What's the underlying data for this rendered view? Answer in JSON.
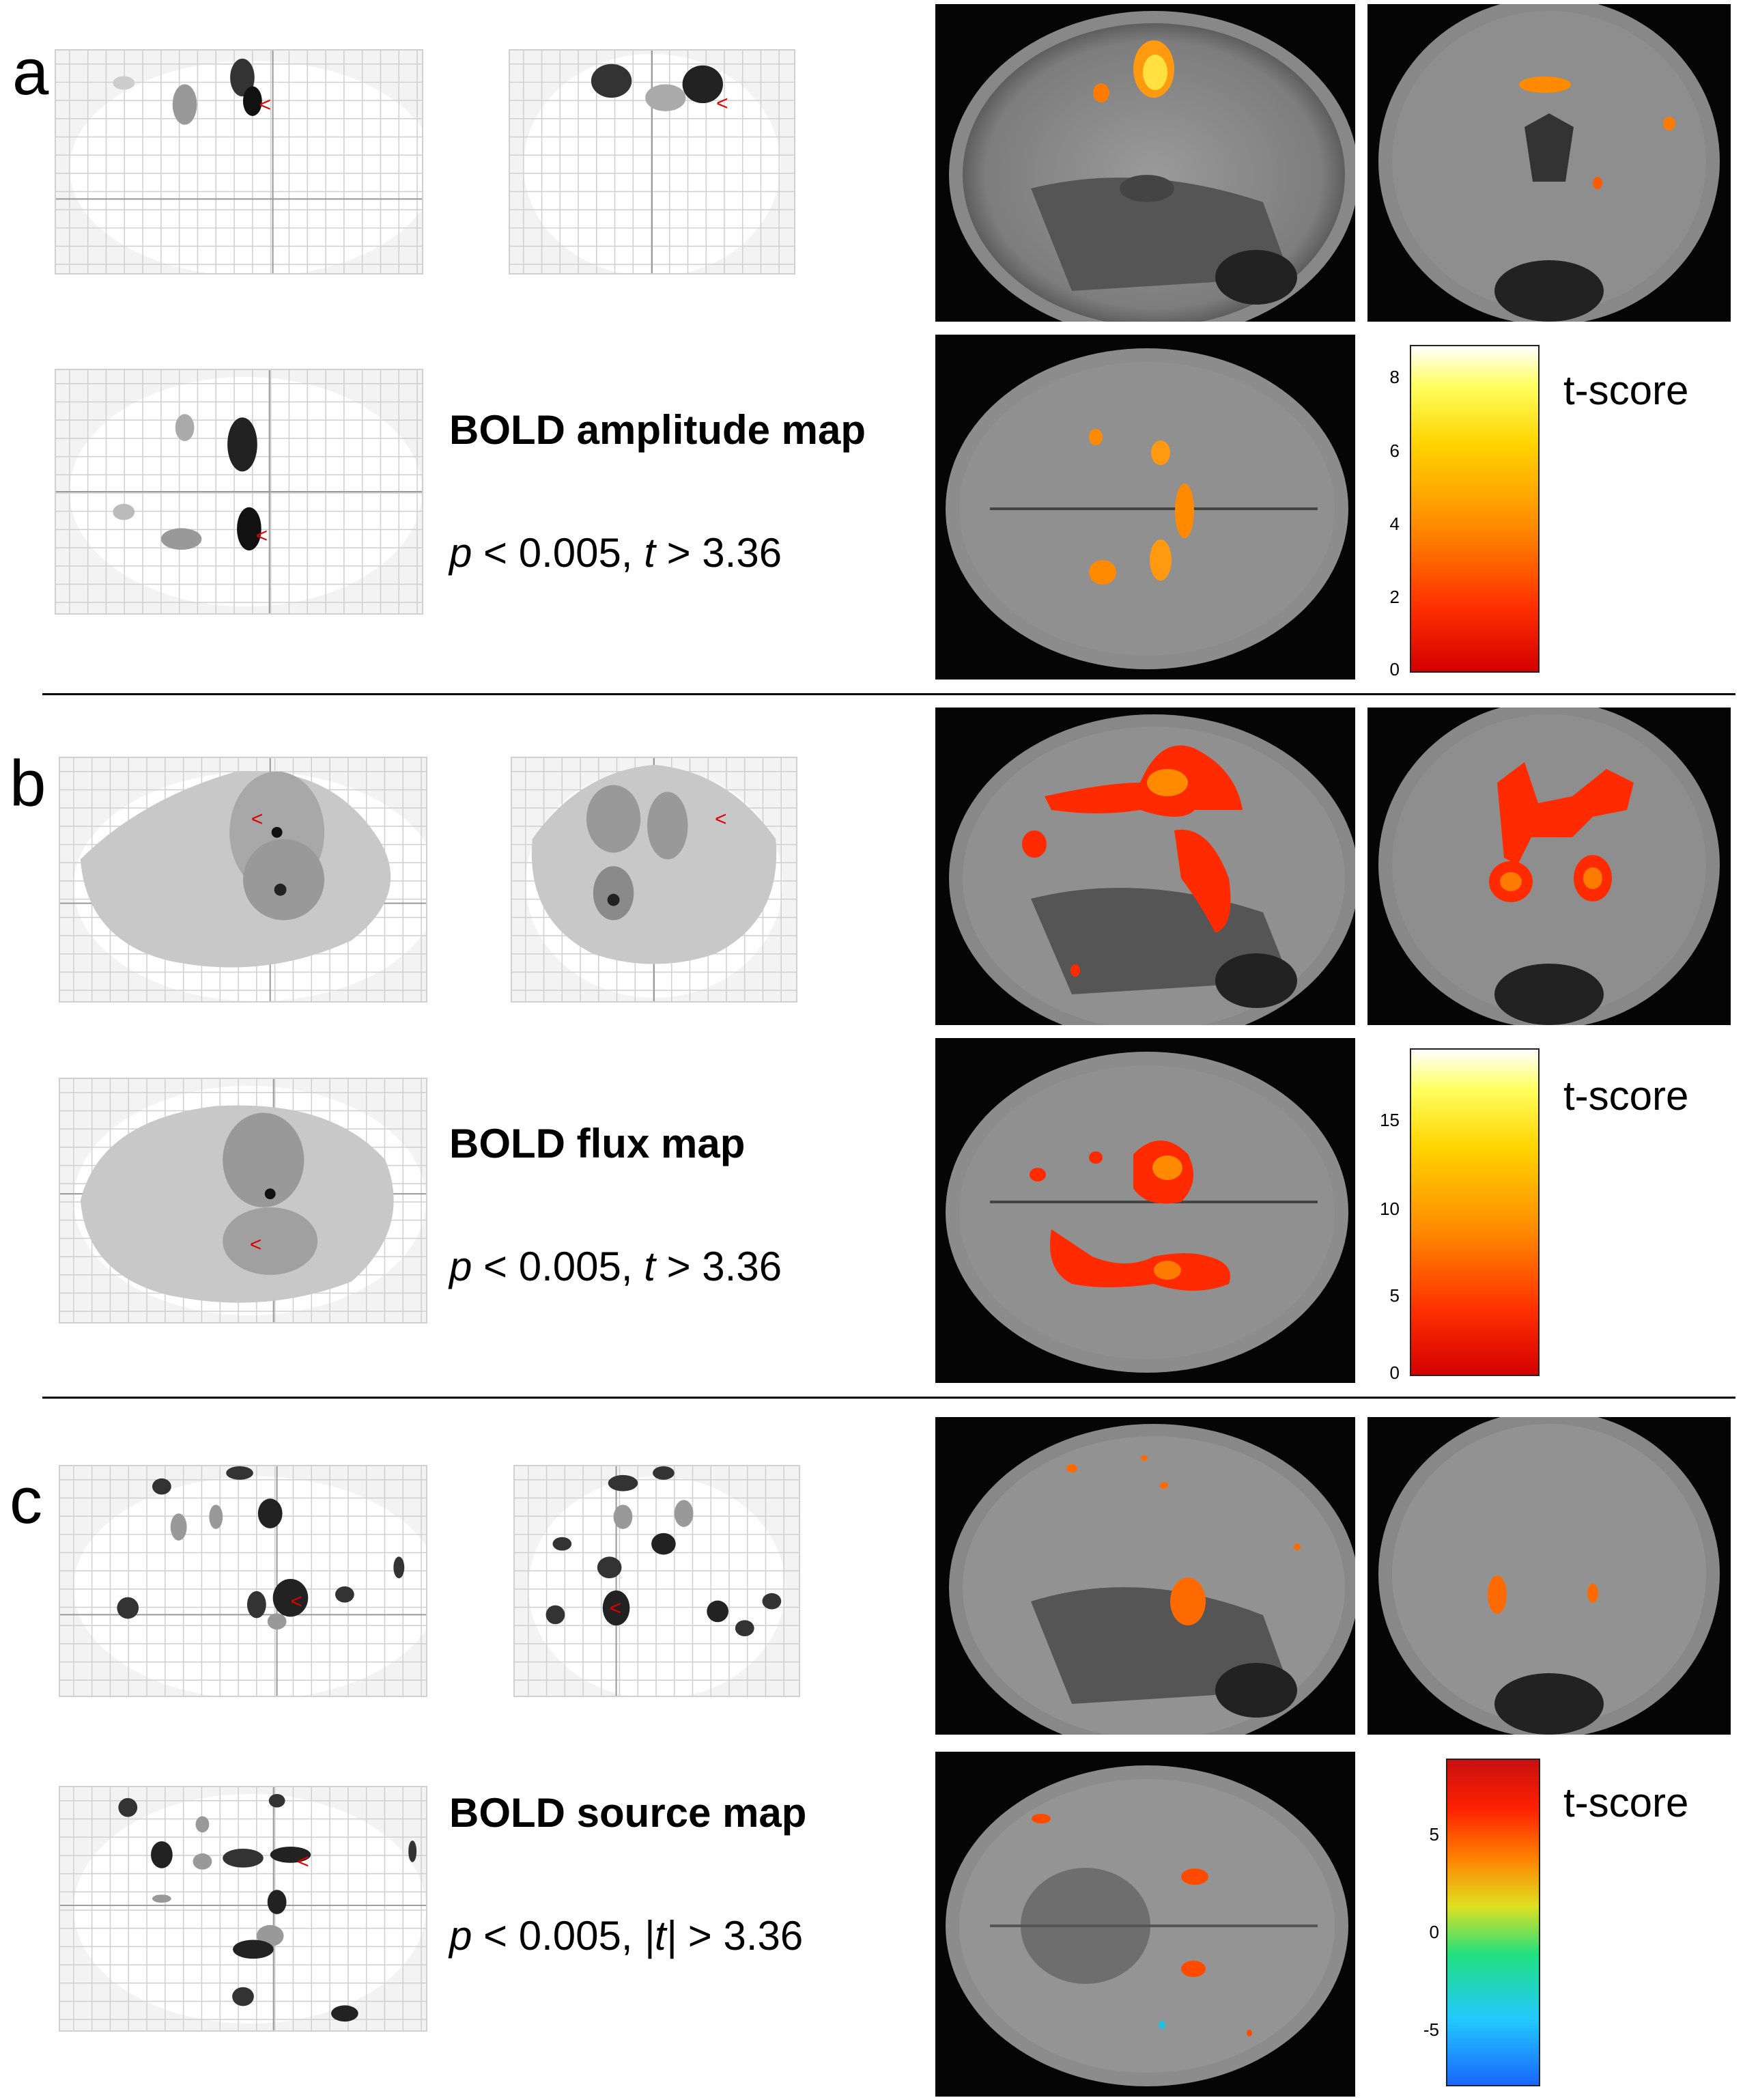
{
  "panels": [
    {
      "letter": "a",
      "title": "BOLD amplitude map",
      "threshold": {
        "p": "p",
        "p_text": " < 0.005, ",
        "t": "t",
        "t_text": " > 3.36"
      },
      "colorbar": {
        "label": "t-score",
        "ticks": [
          "8",
          "6",
          "4",
          "2",
          "0"
        ],
        "scheme": "hot"
      }
    },
    {
      "letter": "b",
      "title": "BOLD flux map",
      "threshold": {
        "p": "p",
        "p_text": " < 0.005, ",
        "t": "t",
        "t_text": " > 3.36"
      },
      "colorbar": {
        "label": "t-score",
        "ticks": [
          "15",
          "10",
          "5",
          "0"
        ],
        "scheme": "hot"
      }
    },
    {
      "letter": "c",
      "title": "BOLD source map",
      "threshold": {
        "p": "p",
        "p_text": " < 0.005, ",
        "t": "|t|",
        "t_text": " > 3.36"
      },
      "colorbar": {
        "label": "t-score",
        "ticks": [
          "5",
          "0",
          "-5"
        ],
        "scheme": "jet"
      }
    }
  ],
  "colors": {
    "activation": "#ff4a00",
    "marker": "#e00000",
    "background": "#ffffff"
  }
}
